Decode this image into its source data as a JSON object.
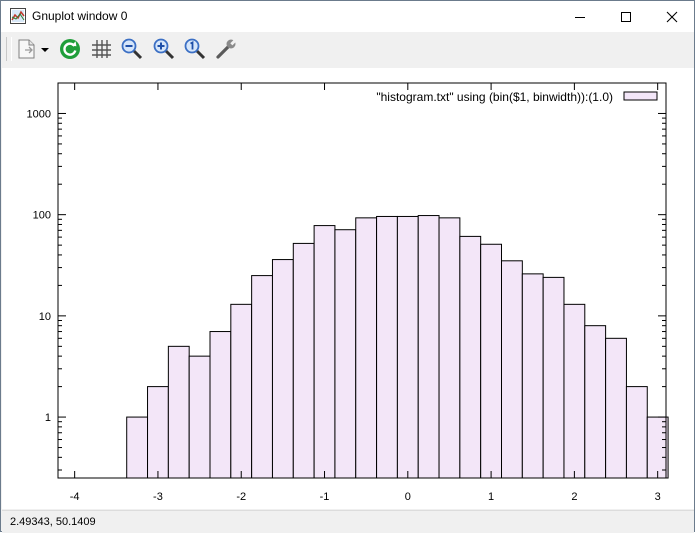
{
  "window": {
    "title": "Gnuplot window 0"
  },
  "toolbar": {
    "buttons": [
      {
        "name": "copy-export-icon"
      },
      {
        "name": "dropdown-arrow-icon"
      },
      {
        "name": "replot-icon"
      },
      {
        "name": "grid-icon"
      },
      {
        "name": "zoom-out-icon"
      },
      {
        "name": "zoom-in-icon"
      },
      {
        "name": "zoom-reset-icon"
      },
      {
        "name": "options-wrench-icon"
      }
    ]
  },
  "status": {
    "coordinates": "2.49343,  50.1409"
  },
  "colors": {
    "bar_fill": "#f3e6f8",
    "bar_stroke": "#000000",
    "replot_green": "#1f9e3a",
    "zoom_blue": "#3b6fc4"
  },
  "chart_data": {
    "type": "bar",
    "title": "",
    "xlabel": "",
    "ylabel": "",
    "yscale": "log",
    "xlim": [
      -4.2,
      3.1
    ],
    "ylim": [
      0.25,
      2000
    ],
    "x_ticks": [
      -4,
      -3,
      -2,
      -1,
      0,
      1,
      2,
      3
    ],
    "x_tick_labels": [
      "-4",
      "-3",
      "-2",
      "-1",
      "0",
      "1",
      "2",
      "3"
    ],
    "y_ticks": [
      1,
      10,
      100,
      1000
    ],
    "y_tick_labels": [
      "1",
      "10",
      "100",
      "1000"
    ],
    "grid": false,
    "legend_position": "top-right",
    "bin_width": 0.25,
    "series": [
      {
        "name": "\"histogram.txt\" using (bin($1, binwidth)):(1.0)",
        "bin_centers": [
          -3.25,
          -3.0,
          -2.75,
          -2.5,
          -2.25,
          -2.0,
          -1.75,
          -1.5,
          -1.25,
          -1.0,
          -0.75,
          -0.5,
          -0.25,
          0.0,
          0.25,
          0.5,
          0.75,
          1.0,
          1.25,
          1.5,
          1.75,
          2.0,
          2.25,
          2.5,
          2.75,
          3.0
        ],
        "values": [
          1,
          2,
          5,
          4,
          7,
          13,
          25,
          36,
          52,
          78,
          71,
          93,
          96,
          96,
          98,
          93,
          61,
          51,
          35,
          26,
          24,
          13,
          8,
          6,
          2,
          1
        ]
      }
    ]
  }
}
